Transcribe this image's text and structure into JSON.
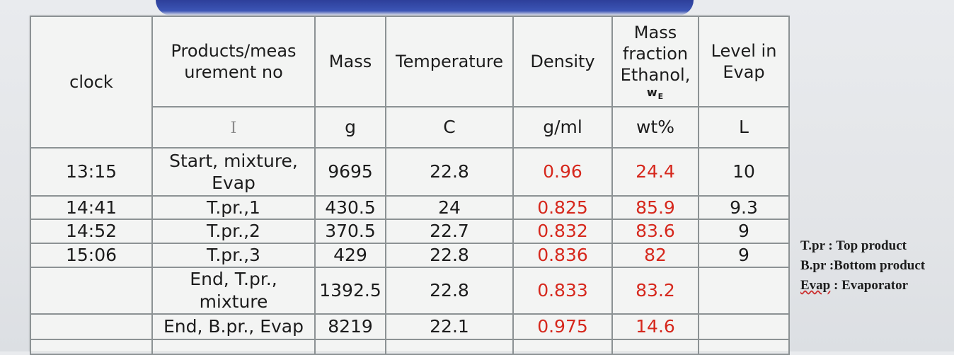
{
  "header": {
    "clock": "clock",
    "products": "Products/measurement no",
    "products_line1": "Products/meas",
    "products_line2": "urement no",
    "mass": "Mass",
    "temperature": "Temperature",
    "density": "Density",
    "mass_fraction_line1": "Mass",
    "mass_fraction_line2": "fraction",
    "mass_fraction_line3": "Ethanol,",
    "mass_fraction_symbol": "wE",
    "level_line1": "Level in",
    "level_line2": "Evap"
  },
  "units": {
    "products": "I",
    "mass": "g",
    "temperature": "C",
    "density": "g/ml",
    "mass_fraction": "wt%",
    "level": "L"
  },
  "rows": [
    {
      "clock": "13:15",
      "product_line1": "Start, mixture,",
      "product_line2": "Evap",
      "mass": "9695",
      "temperature": "22.8",
      "density": "0.96",
      "mass_fraction": "24.4",
      "level": "10"
    },
    {
      "clock": "14:41",
      "product": "T.pr.,1",
      "mass": "430.5",
      "temperature": "24",
      "density": "0.825",
      "mass_fraction": "85.9",
      "level": "9.3"
    },
    {
      "clock": "14:52",
      "product": "T.pr.,2",
      "mass": "370.5",
      "temperature": "22.7",
      "density": "0.832",
      "mass_fraction": "83.6",
      "level": "9"
    },
    {
      "clock": "15:06",
      "product": "T.pr.,3",
      "mass": "429",
      "temperature": "22.8",
      "density": "0.836",
      "mass_fraction": "82",
      "level": "9"
    },
    {
      "clock": "",
      "product_line1": "End, T.pr.,",
      "product_line2": "mixture",
      "mass": "1392.5",
      "temperature": "22.8",
      "density": "0.833",
      "mass_fraction": "83.2",
      "level": ""
    },
    {
      "clock": "",
      "product": "End, B.pr., Evap",
      "mass": "8219",
      "temperature": "22.1",
      "density": "0.975",
      "mass_fraction": "14.6",
      "level": ""
    }
  ],
  "legend": [
    "T.pr : Top product",
    "B.pr :Bottom product",
    "Evap : Evaporator"
  ],
  "legend_parts": {
    "evap_word": "Evap",
    "evap_rest": " : Evaporator"
  },
  "colors": {
    "highlight_text": "#d6281d",
    "band": "#3c55b5"
  }
}
